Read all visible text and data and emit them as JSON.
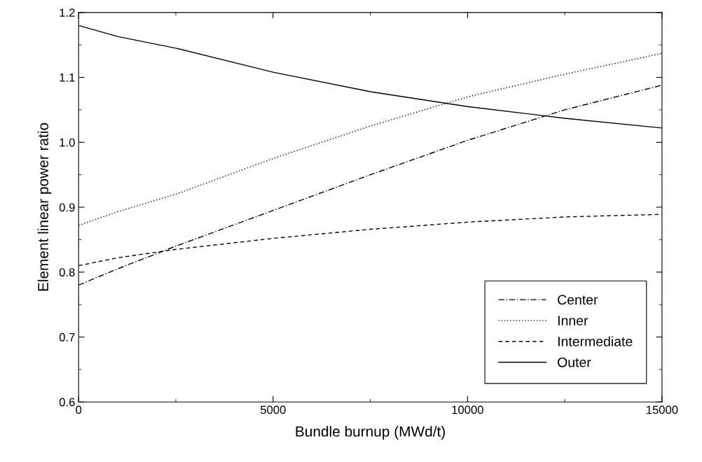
{
  "chart_data": {
    "type": "line",
    "xlabel": "Bundle burnup (MWd/t)",
    "ylabel": "Element linear power ratio",
    "x": [
      0,
      1000,
      2500,
      5000,
      7500,
      10000,
      12500,
      15000
    ],
    "series": [
      {
        "name": "Center",
        "color": "#000000",
        "line_style": "dashdot",
        "values": [
          0.78,
          0.805,
          0.84,
          0.895,
          0.95,
          1.003,
          1.05,
          1.088
        ]
      },
      {
        "name": "Inner",
        "color": "#000000",
        "line_style": "dotted",
        "values": [
          0.872,
          0.893,
          0.92,
          0.975,
          1.025,
          1.07,
          1.105,
          1.137
        ]
      },
      {
        "name": "Intermediate",
        "color": "#000000",
        "line_style": "dashed",
        "values": [
          0.81,
          0.822,
          0.835,
          0.852,
          0.866,
          0.877,
          0.885,
          0.889
        ]
      },
      {
        "name": "Outer",
        "color": "#000000",
        "line_style": "solid",
        "values": [
          1.18,
          1.163,
          1.145,
          1.108,
          1.078,
          1.055,
          1.037,
          1.022
        ]
      }
    ],
    "xlim": [
      0,
      15000
    ],
    "xticks": [
      0,
      5000,
      10000,
      15000
    ],
    "ylim": [
      0.6,
      1.2
    ],
    "yticks": [
      0.6,
      0.7,
      0.8,
      0.9,
      {
        "value": 1,
        "label": "1.0"
      },
      1.1,
      1.2
    ],
    "grid": false,
    "legend": "bottom right",
    "marker": "none"
  }
}
